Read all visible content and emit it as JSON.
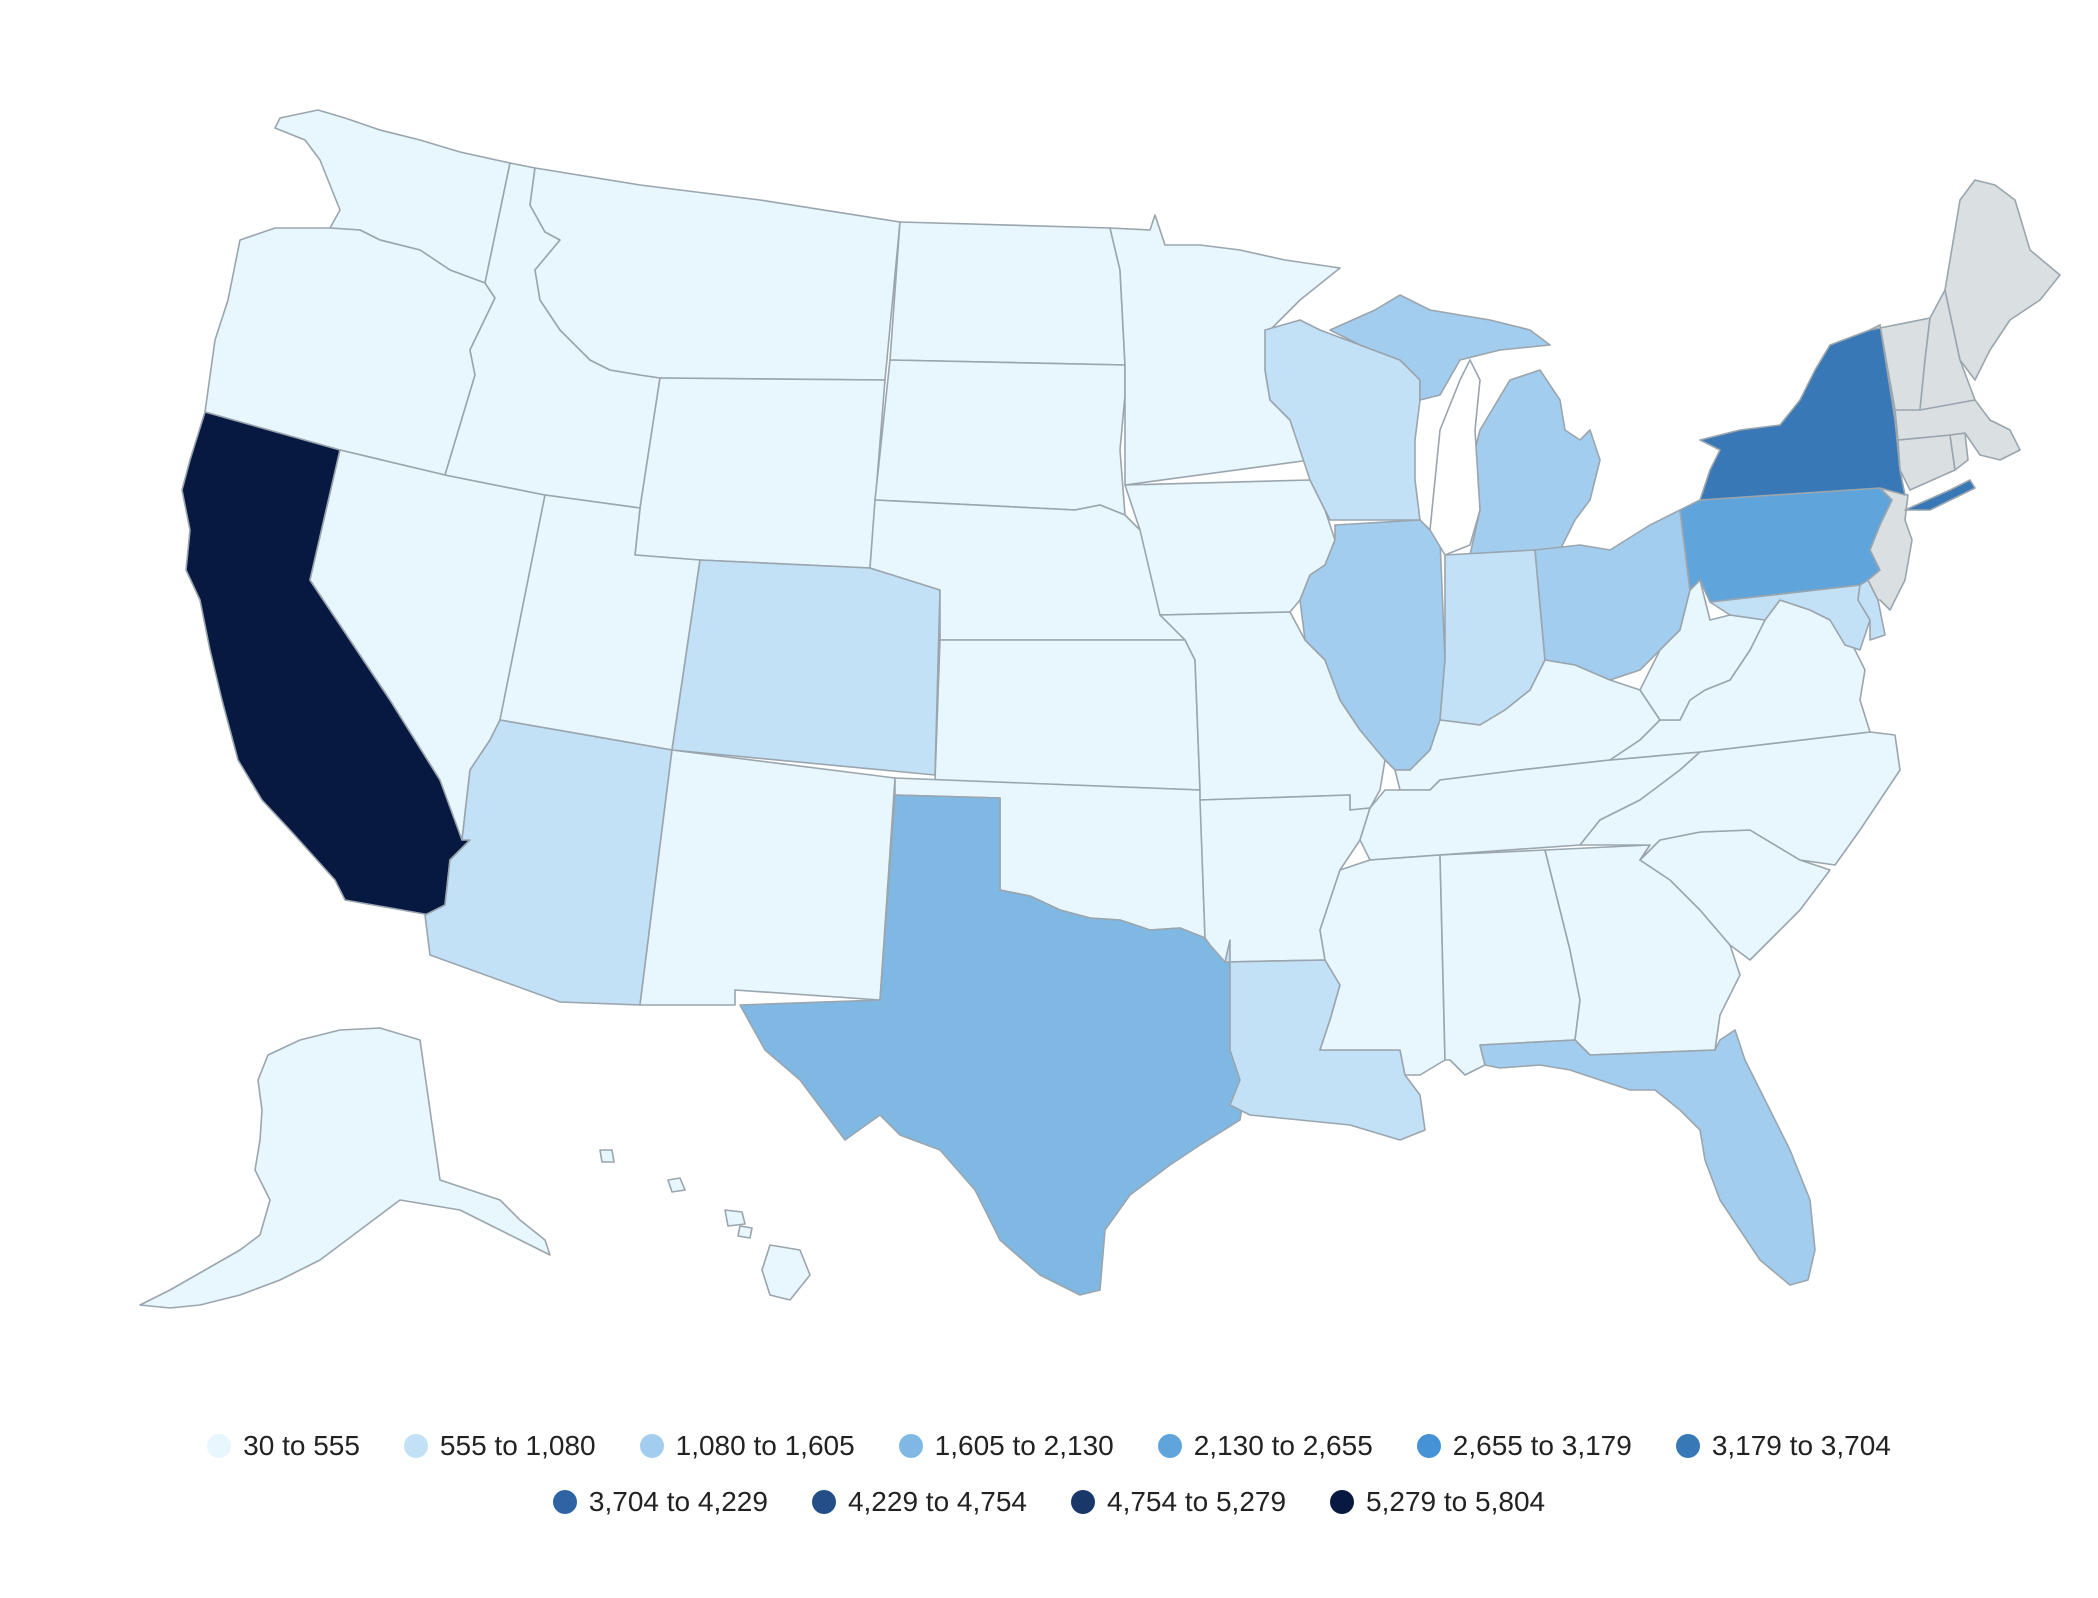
{
  "colors": {
    "bin0": "#e8f6fd",
    "bin1": "#c3e1f6",
    "bin2": "#a3cdef",
    "bin3": "#80b8e4",
    "bin4": "#5fa5dc",
    "bin5": "#4692d6",
    "bin6": "#3978b6",
    "bin7": "#2f64a4",
    "bin8": "#244e88",
    "bin9": "#193869",
    "bin10": "#071841",
    "no_data": "#dadfe2"
  },
  "legend": {
    "row1": [
      {
        "label": "30 to 555",
        "color": "#e8f6fd"
      },
      {
        "label": "555 to 1,080",
        "color": "#c3e1f6"
      },
      {
        "label": "1,080 to 1,605",
        "color": "#a3cdef"
      },
      {
        "label": "1,605 to 2,130",
        "color": "#80b8e4"
      },
      {
        "label": "2,130 to 2,655",
        "color": "#5fa5dc"
      },
      {
        "label": "2,655 to 3,179",
        "color": "#4692d6"
      },
      {
        "label": "3,179 to 3,704",
        "color": "#3978b6"
      }
    ],
    "row2": [
      {
        "label": "3,704 to 4,229",
        "color": "#2f64a4"
      },
      {
        "label": "4,229 to 4,754",
        "color": "#244e88"
      },
      {
        "label": "4,754 to 5,279",
        "color": "#193869"
      },
      {
        "label": "5,279 to 5,804",
        "color": "#071841"
      }
    ]
  },
  "state_bins": {
    "WA": "bin0",
    "OR": "bin0",
    "CA": "bin10",
    "NV": "bin0",
    "ID": "bin0",
    "MT": "bin0",
    "WY": "bin0",
    "UT": "bin0",
    "AZ": "bin1",
    "CO": "bin1",
    "NM": "bin0",
    "ND": "bin0",
    "SD": "bin0",
    "NE": "bin0",
    "KS": "bin0",
    "OK": "bin0",
    "TX": "bin3",
    "MN": "bin0",
    "IA": "bin0",
    "MO": "bin0",
    "AR": "bin0",
    "LA": "bin1",
    "WI": "bin1",
    "IL": "bin2",
    "MI": "bin2",
    "IN": "bin1",
    "OH": "bin2",
    "KY": "bin0",
    "TN": "bin0",
    "MS": "bin0",
    "AL": "bin0",
    "GA": "bin0",
    "FL": "bin2",
    "SC": "bin0",
    "NC": "bin0",
    "VA": "bin0",
    "WV": "bin0",
    "MD": "bin1",
    "DE": "bin1",
    "PA": "bin4",
    "NJ": "no_data",
    "NY": "bin6",
    "CT": "no_data",
    "RI": "no_data",
    "MA": "no_data",
    "VT": "no_data",
    "NH": "no_data",
    "ME": "no_data",
    "AK": "bin0",
    "HI": "bin0"
  }
}
